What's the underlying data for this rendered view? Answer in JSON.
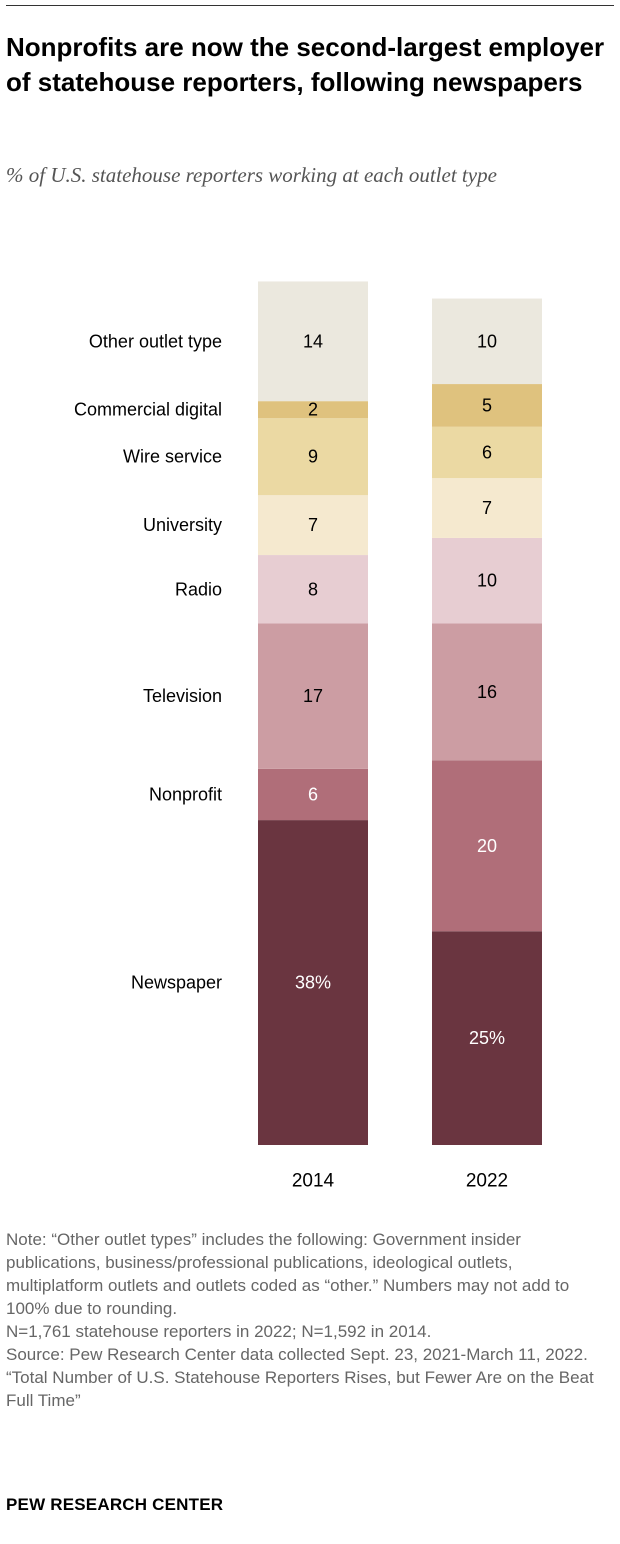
{
  "title": "Nonprofits are now the second-largest employer of statehouse reporters, following newspapers",
  "subtitle": "% of U.S. statehouse reporters working at each outlet type",
  "chart_data": {
    "type": "bar",
    "stacked": true,
    "orientation": "vertical",
    "categories": [
      "2014",
      "2022"
    ],
    "series": [
      {
        "name": "Newspaper",
        "values": [
          38,
          25
        ],
        "labels": [
          "38%",
          "25%"
        ],
        "color": "#6a3540",
        "text_color": "#ffffff"
      },
      {
        "name": "Nonprofit",
        "values": [
          6,
          20
        ],
        "labels": [
          "6",
          "20"
        ],
        "color": "#b06e79",
        "text_color": "#ffffff"
      },
      {
        "name": "Television",
        "values": [
          17,
          16
        ],
        "labels": [
          "17",
          "16"
        ],
        "color": "#cc9da3",
        "text_color": "#000000"
      },
      {
        "name": "Radio",
        "values": [
          8,
          10
        ],
        "labels": [
          "8",
          "10"
        ],
        "color": "#e7cdd2",
        "text_color": "#000000"
      },
      {
        "name": "University",
        "values": [
          7,
          7
        ],
        "labels": [
          "7",
          "7"
        ],
        "color": "#f5e9cf",
        "text_color": "#000000"
      },
      {
        "name": "Wire service",
        "values": [
          9,
          6
        ],
        "labels": [
          "9",
          "6"
        ],
        "color": "#ebd9a3",
        "text_color": "#000000"
      },
      {
        "name": "Commercial digital",
        "values": [
          2,
          5
        ],
        "labels": [
          "2",
          "5"
        ],
        "color": "#dfc27e",
        "text_color": "#000000"
      },
      {
        "name": "Other outlet type",
        "values": [
          14,
          10
        ],
        "labels": [
          "14",
          "10"
        ],
        "color": "#ebe8de",
        "text_color": "#000000"
      }
    ],
    "category_labels_side": "left",
    "ylim": [
      0,
      100
    ],
    "grid": false,
    "legend": "none"
  },
  "notes": [
    "Note: “Other outlet types” includes the following: Government insider publications, business/professional publications, ideological outlets, multiplatform outlets and outlets coded as “other.” Numbers may not add to 100% due to rounding.",
    "N=1,761 statehouse reporters in 2022; N=1,592 in 2014.",
    "Source: Pew Research Center data collected Sept. 23, 2021-March 11, 2022.",
    "“Total Number of U.S. Statehouse Reporters Rises, but Fewer Are on the Beat Full Time”"
  ],
  "brand": "PEW RESEARCH CENTER"
}
